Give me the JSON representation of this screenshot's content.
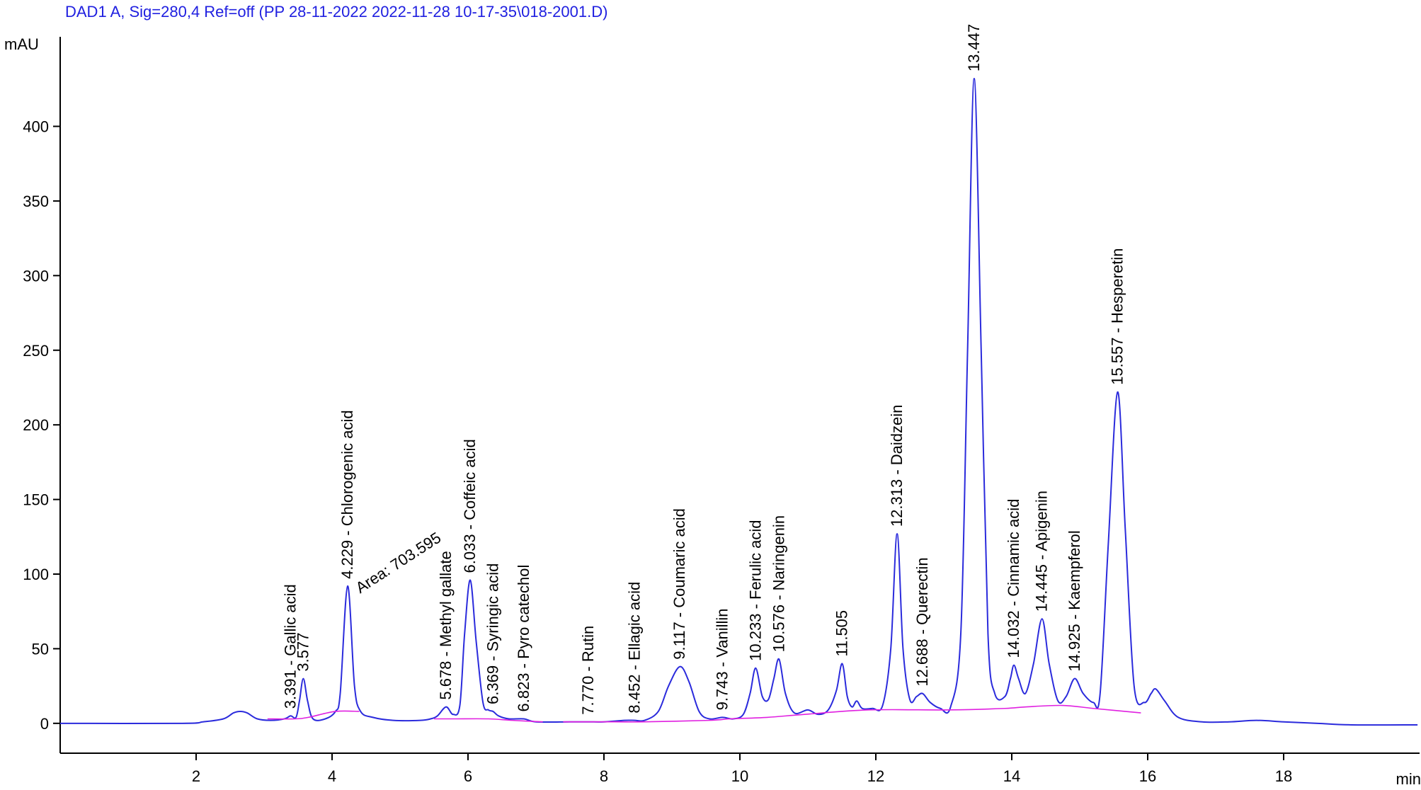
{
  "chart_data": {
    "type": "line",
    "title": "DAD1 A, Sig=280,4 Ref=off (PP 28-11-2022 2022-11-28 10-17-35\\018-2001.D)",
    "ylabel": "mAU",
    "xlabel": "min",
    "xlim": [
      0,
      20
    ],
    "ylim": [
      -20,
      460
    ],
    "xticks": [
      2,
      4,
      6,
      8,
      10,
      12,
      14,
      16,
      18
    ],
    "yticks": [
      0,
      50,
      100,
      150,
      200,
      250,
      300,
      350,
      400
    ],
    "series": [
      {
        "color": "#2b2bdc",
        "x": [
          0,
          1.8,
          2.1,
          2.4,
          2.55,
          2.65,
          2.75,
          2.9,
          3.1,
          3.3,
          3.39,
          3.47,
          3.52,
          3.577,
          3.64,
          3.72,
          3.9,
          4.05,
          4.12,
          4.229,
          4.33,
          4.42,
          4.6,
          4.9,
          5.3,
          5.45,
          5.55,
          5.678,
          5.78,
          5.88,
          5.95,
          6.033,
          6.12,
          6.22,
          6.3,
          6.369,
          6.45,
          6.6,
          6.823,
          7.0,
          7.5,
          7.77,
          8.0,
          8.3,
          8.452,
          8.6,
          8.8,
          8.95,
          9.117,
          9.25,
          9.4,
          9.55,
          9.743,
          9.9,
          10.05,
          10.15,
          10.233,
          10.33,
          10.42,
          10.5,
          10.576,
          10.67,
          10.8,
          11.0,
          11.15,
          11.3,
          11.42,
          11.505,
          11.58,
          11.65,
          11.72,
          11.8,
          11.95,
          12.1,
          12.22,
          12.313,
          12.4,
          12.5,
          12.6,
          12.688,
          12.8,
          12.95,
          13.1,
          13.25,
          13.35,
          13.447,
          13.55,
          13.65,
          13.75,
          13.9,
          13.98,
          14.032,
          14.1,
          14.2,
          14.32,
          14.445,
          14.55,
          14.68,
          14.8,
          14.925,
          15.05,
          15.2,
          15.3,
          15.42,
          15.557,
          15.67,
          15.8,
          15.95,
          16.05,
          16.12,
          16.25,
          16.45,
          16.8,
          17.2,
          17.6,
          18.0,
          18.5,
          19.0,
          19.97
        ],
        "values": [
          0,
          0,
          1,
          3,
          7,
          8,
          7,
          3,
          2,
          3,
          5,
          4,
          15,
          30,
          15,
          3,
          3,
          8,
          20,
          92,
          25,
          8,
          4,
          2,
          2,
          3,
          5,
          11,
          6,
          12,
          60,
          96,
          55,
          14,
          9,
          8,
          5,
          3,
          3,
          1,
          1,
          1,
          1,
          2,
          2,
          2,
          8,
          25,
          38,
          28,
          8,
          3,
          4,
          3,
          6,
          20,
          37,
          18,
          16,
          30,
          43,
          20,
          7,
          9,
          6,
          9,
          22,
          40,
          18,
          11,
          15,
          10,
          10,
          12,
          50,
          127,
          50,
          16,
          18,
          20,
          14,
          10,
          11,
          60,
          250,
          432,
          250,
          60,
          20,
          18,
          30,
          39,
          30,
          20,
          40,
          70,
          40,
          15,
          18,
          30,
          20,
          14,
          20,
          120,
          222,
          130,
          25,
          14,
          20,
          23,
          15,
          4,
          1,
          1,
          2,
          1,
          0,
          -1,
          -1
        ]
      },
      {
        "color": "#e020e0",
        "x": [
          3.05,
          3.45,
          3.65,
          4.05,
          4.4,
          null,
          5.5,
          5.8,
          6.3,
          6.65,
          7.1,
          null,
          7.4,
          8.15,
          8.6,
          9.55,
          9.85,
          10.4,
          10.95,
          11.9,
          13.1,
          13.9,
          14.2,
          14.75,
          15.2,
          15.9
        ],
        "values": [
          3,
          3,
          4,
          8,
          8,
          null,
          3,
          3,
          3,
          2,
          1,
          null,
          1,
          1,
          1,
          2,
          3,
          4,
          6,
          9,
          9,
          10,
          11,
          12,
          10,
          7
        ]
      }
    ],
    "annotations": [
      {
        "text": "3.391 - Gallic acid",
        "x": 3.391,
        "y": 5
      },
      {
        "text": "3.577",
        "x": 3.577,
        "y": 30
      },
      {
        "text": "4.229 - Chlorogenic acid",
        "x": 4.229,
        "y": 92
      },
      {
        "text": "5.678 - Methyl gallate",
        "x": 5.678,
        "y": 11
      },
      {
        "text": "6.033 - Coffeic acid",
        "x": 6.033,
        "y": 96
      },
      {
        "text": "6.369 - Syringic acid",
        "x": 6.369,
        "y": 8
      },
      {
        "text": "6.823 - Pyro catechol",
        "x": 6.823,
        "y": 3
      },
      {
        "text": "7.770 - Rutin",
        "x": 7.77,
        "y": 1
      },
      {
        "text": "8.452 - Ellagic acid",
        "x": 8.452,
        "y": 2
      },
      {
        "text": "9.117 - Coumaric acid",
        "x": 9.117,
        "y": 38
      },
      {
        "text": "9.743 - Vanillin",
        "x": 9.743,
        "y": 4
      },
      {
        "text": "10.233 - Ferulic acid",
        "x": 10.233,
        "y": 37
      },
      {
        "text": "10.576 - Naringenin",
        "x": 10.576,
        "y": 43
      },
      {
        "text": "11.505",
        "x": 11.505,
        "y": 40
      },
      {
        "text": "12.313 - Daidzein",
        "x": 12.313,
        "y": 127
      },
      {
        "text": "12.688 - Querectin",
        "x": 12.688,
        "y": 20
      },
      {
        "text": "13.447",
        "x": 13.447,
        "y": 432
      },
      {
        "text": "14.032 - Cinnamic acid",
        "x": 14.032,
        "y": 39
      },
      {
        "text": "14.445 - Apigenin",
        "x": 14.445,
        "y": 70
      },
      {
        "text": "14.925 - Kaempferol",
        "x": 14.925,
        "y": 30
      },
      {
        "text": "15.557 - Hesperetin",
        "x": 15.557,
        "y": 222
      }
    ],
    "area_label": {
      "text": "Area: 703.595",
      "x": 4.35,
      "y": 84
    }
  }
}
